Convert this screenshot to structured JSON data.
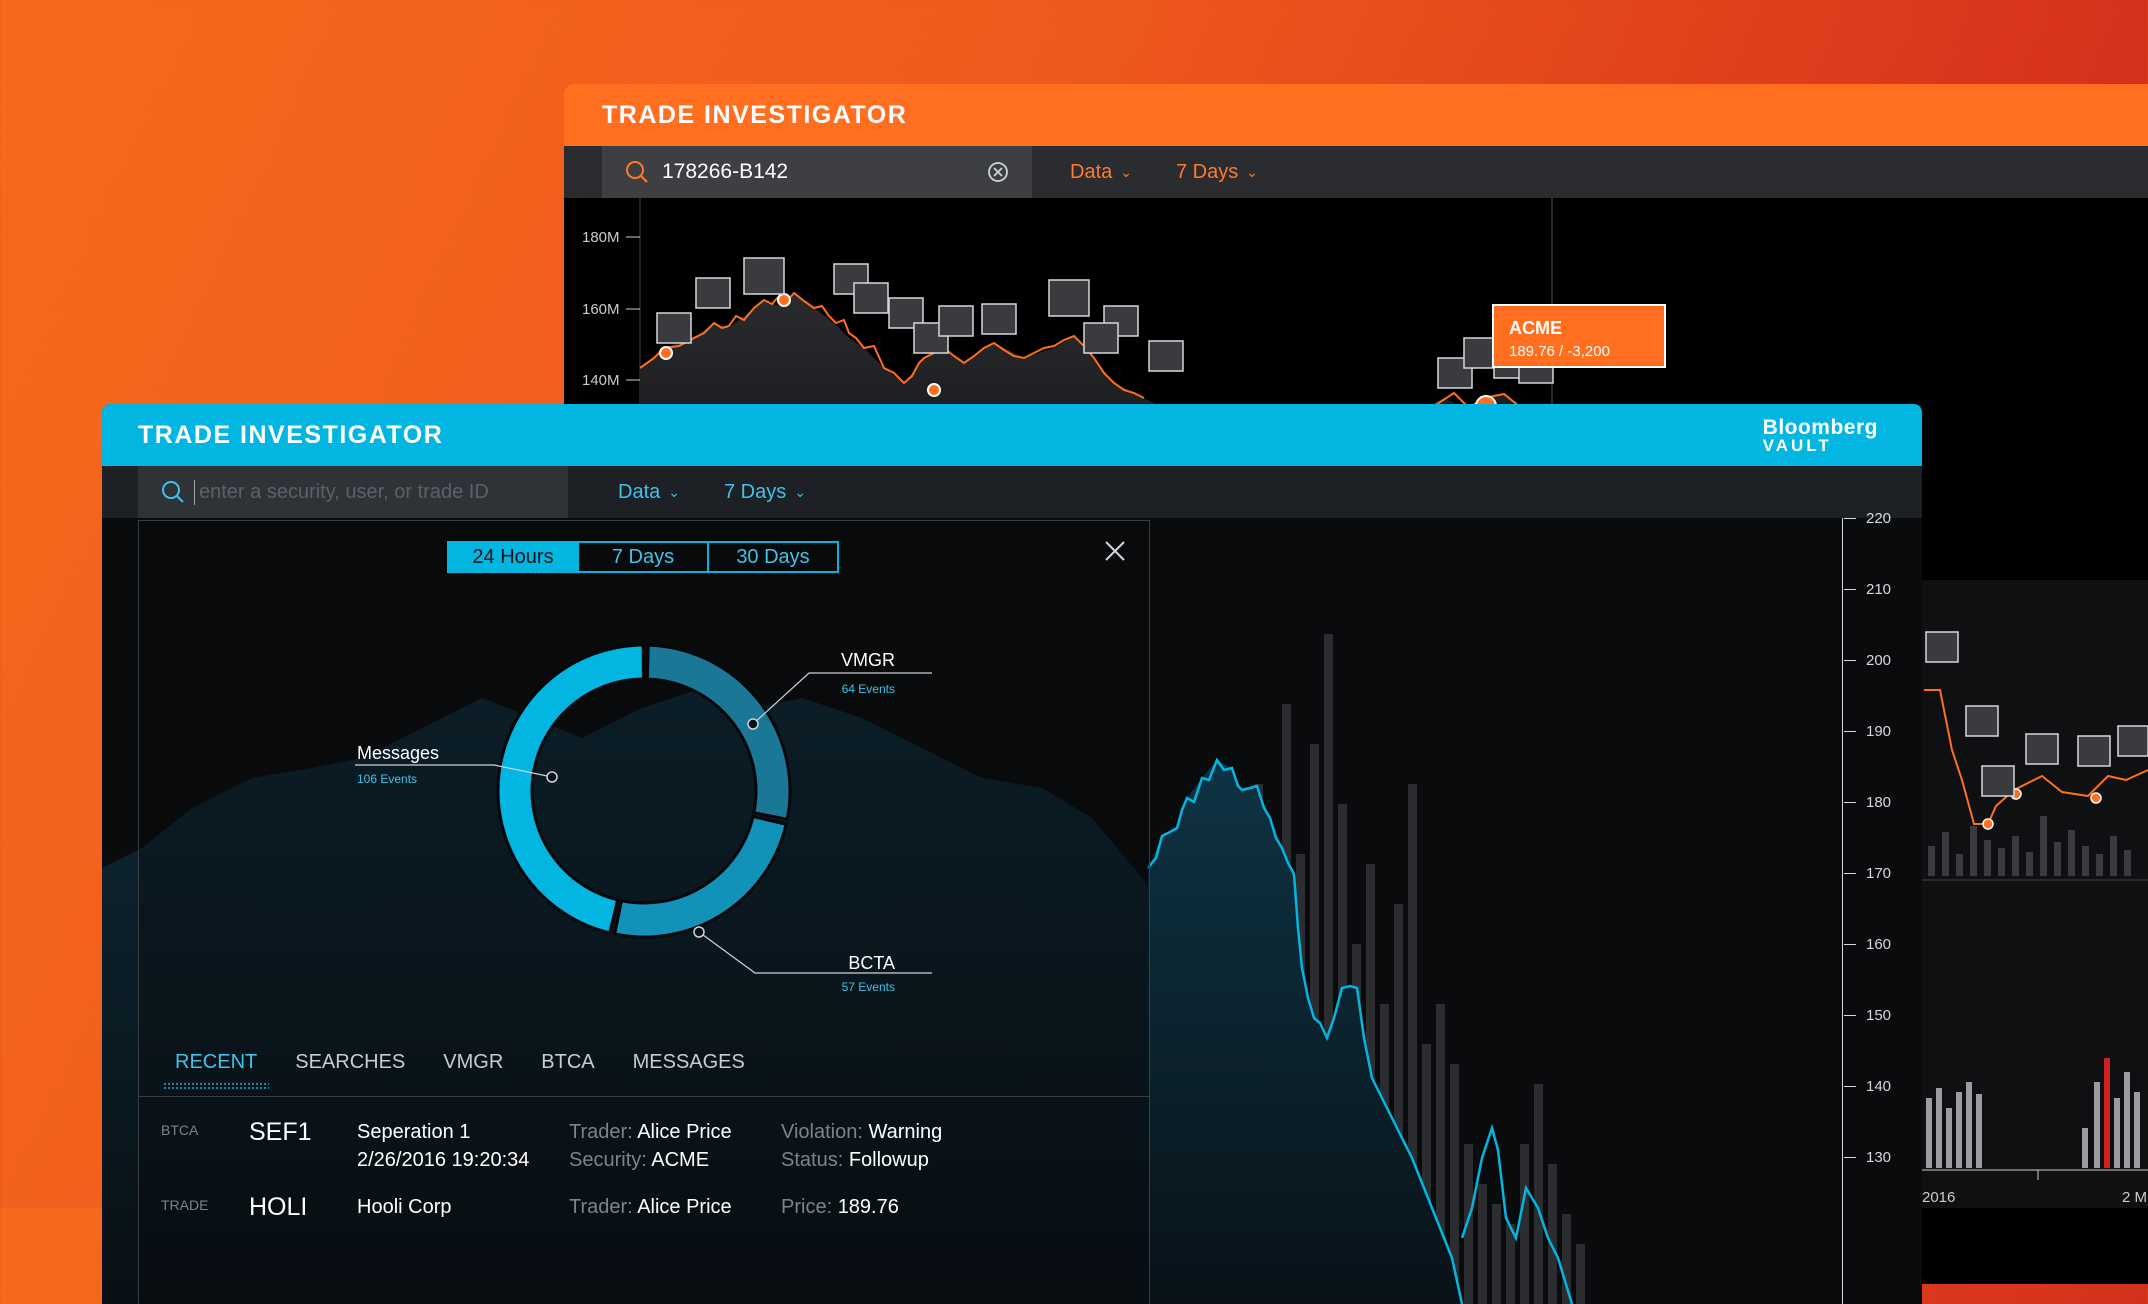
{
  "back": {
    "title": "TRADE INVESTIGATOR",
    "search_value": "178266-B142",
    "data_label": "Data",
    "range_label": "7 Days",
    "y_ticks": [
      "180M",
      "160M",
      "140M"
    ],
    "tooltip": {
      "title": "ACME",
      "value": "189.76 / -3,200"
    }
  },
  "front": {
    "title": "TRADE INVESTIGATOR",
    "logo_line1": "Bloomberg",
    "logo_line2": "VAULT",
    "search_placeholder": "enter a security, user, or trade ID",
    "data_label": "Data",
    "range_label": "7 Days",
    "ranges": [
      "24 Hours",
      "7 Days",
      "30 Days"
    ],
    "tabs": [
      "RECENT",
      "SEARCHES",
      "VMGR",
      "BTCA",
      "MESSAGES"
    ],
    "rows": [
      {
        "type": "BTCA",
        "id": "SEF1",
        "c1a": "Seperation 1",
        "c1b": "2/26/2016 19:20:34",
        "c2a_label": "Trader:",
        "c2a": "Alice Price",
        "c2b_label": "Security:",
        "c2b": "ACME",
        "c3a_label": "Violation:",
        "c3a": "Warning",
        "c3b_label": "Status:",
        "c3b": "Followup"
      },
      {
        "type": "TRADE",
        "id": "HOLI",
        "c1a": "Hooli Corp",
        "c2a_label": "Trader:",
        "c2a": "Alice Price",
        "c3a_label": "Price:",
        "c3a": "189.76"
      }
    ],
    "y_ticks": [
      "220",
      "210",
      "200",
      "190",
      "180",
      "170",
      "160",
      "150",
      "140",
      "130"
    ],
    "x_ticks": [
      "2016",
      "2 M"
    ]
  },
  "chart_data": {
    "type": "pie",
    "series": [
      {
        "name": "VMGR",
        "label": "64 Events",
        "value": 64,
        "color": "#1a7896"
      },
      {
        "name": "BCTA",
        "label": "57 Events",
        "value": 57,
        "color": "#1292b8"
      },
      {
        "name": "Messages",
        "label": "106 Events",
        "value": 106,
        "color": "#03b6e1"
      }
    ]
  }
}
